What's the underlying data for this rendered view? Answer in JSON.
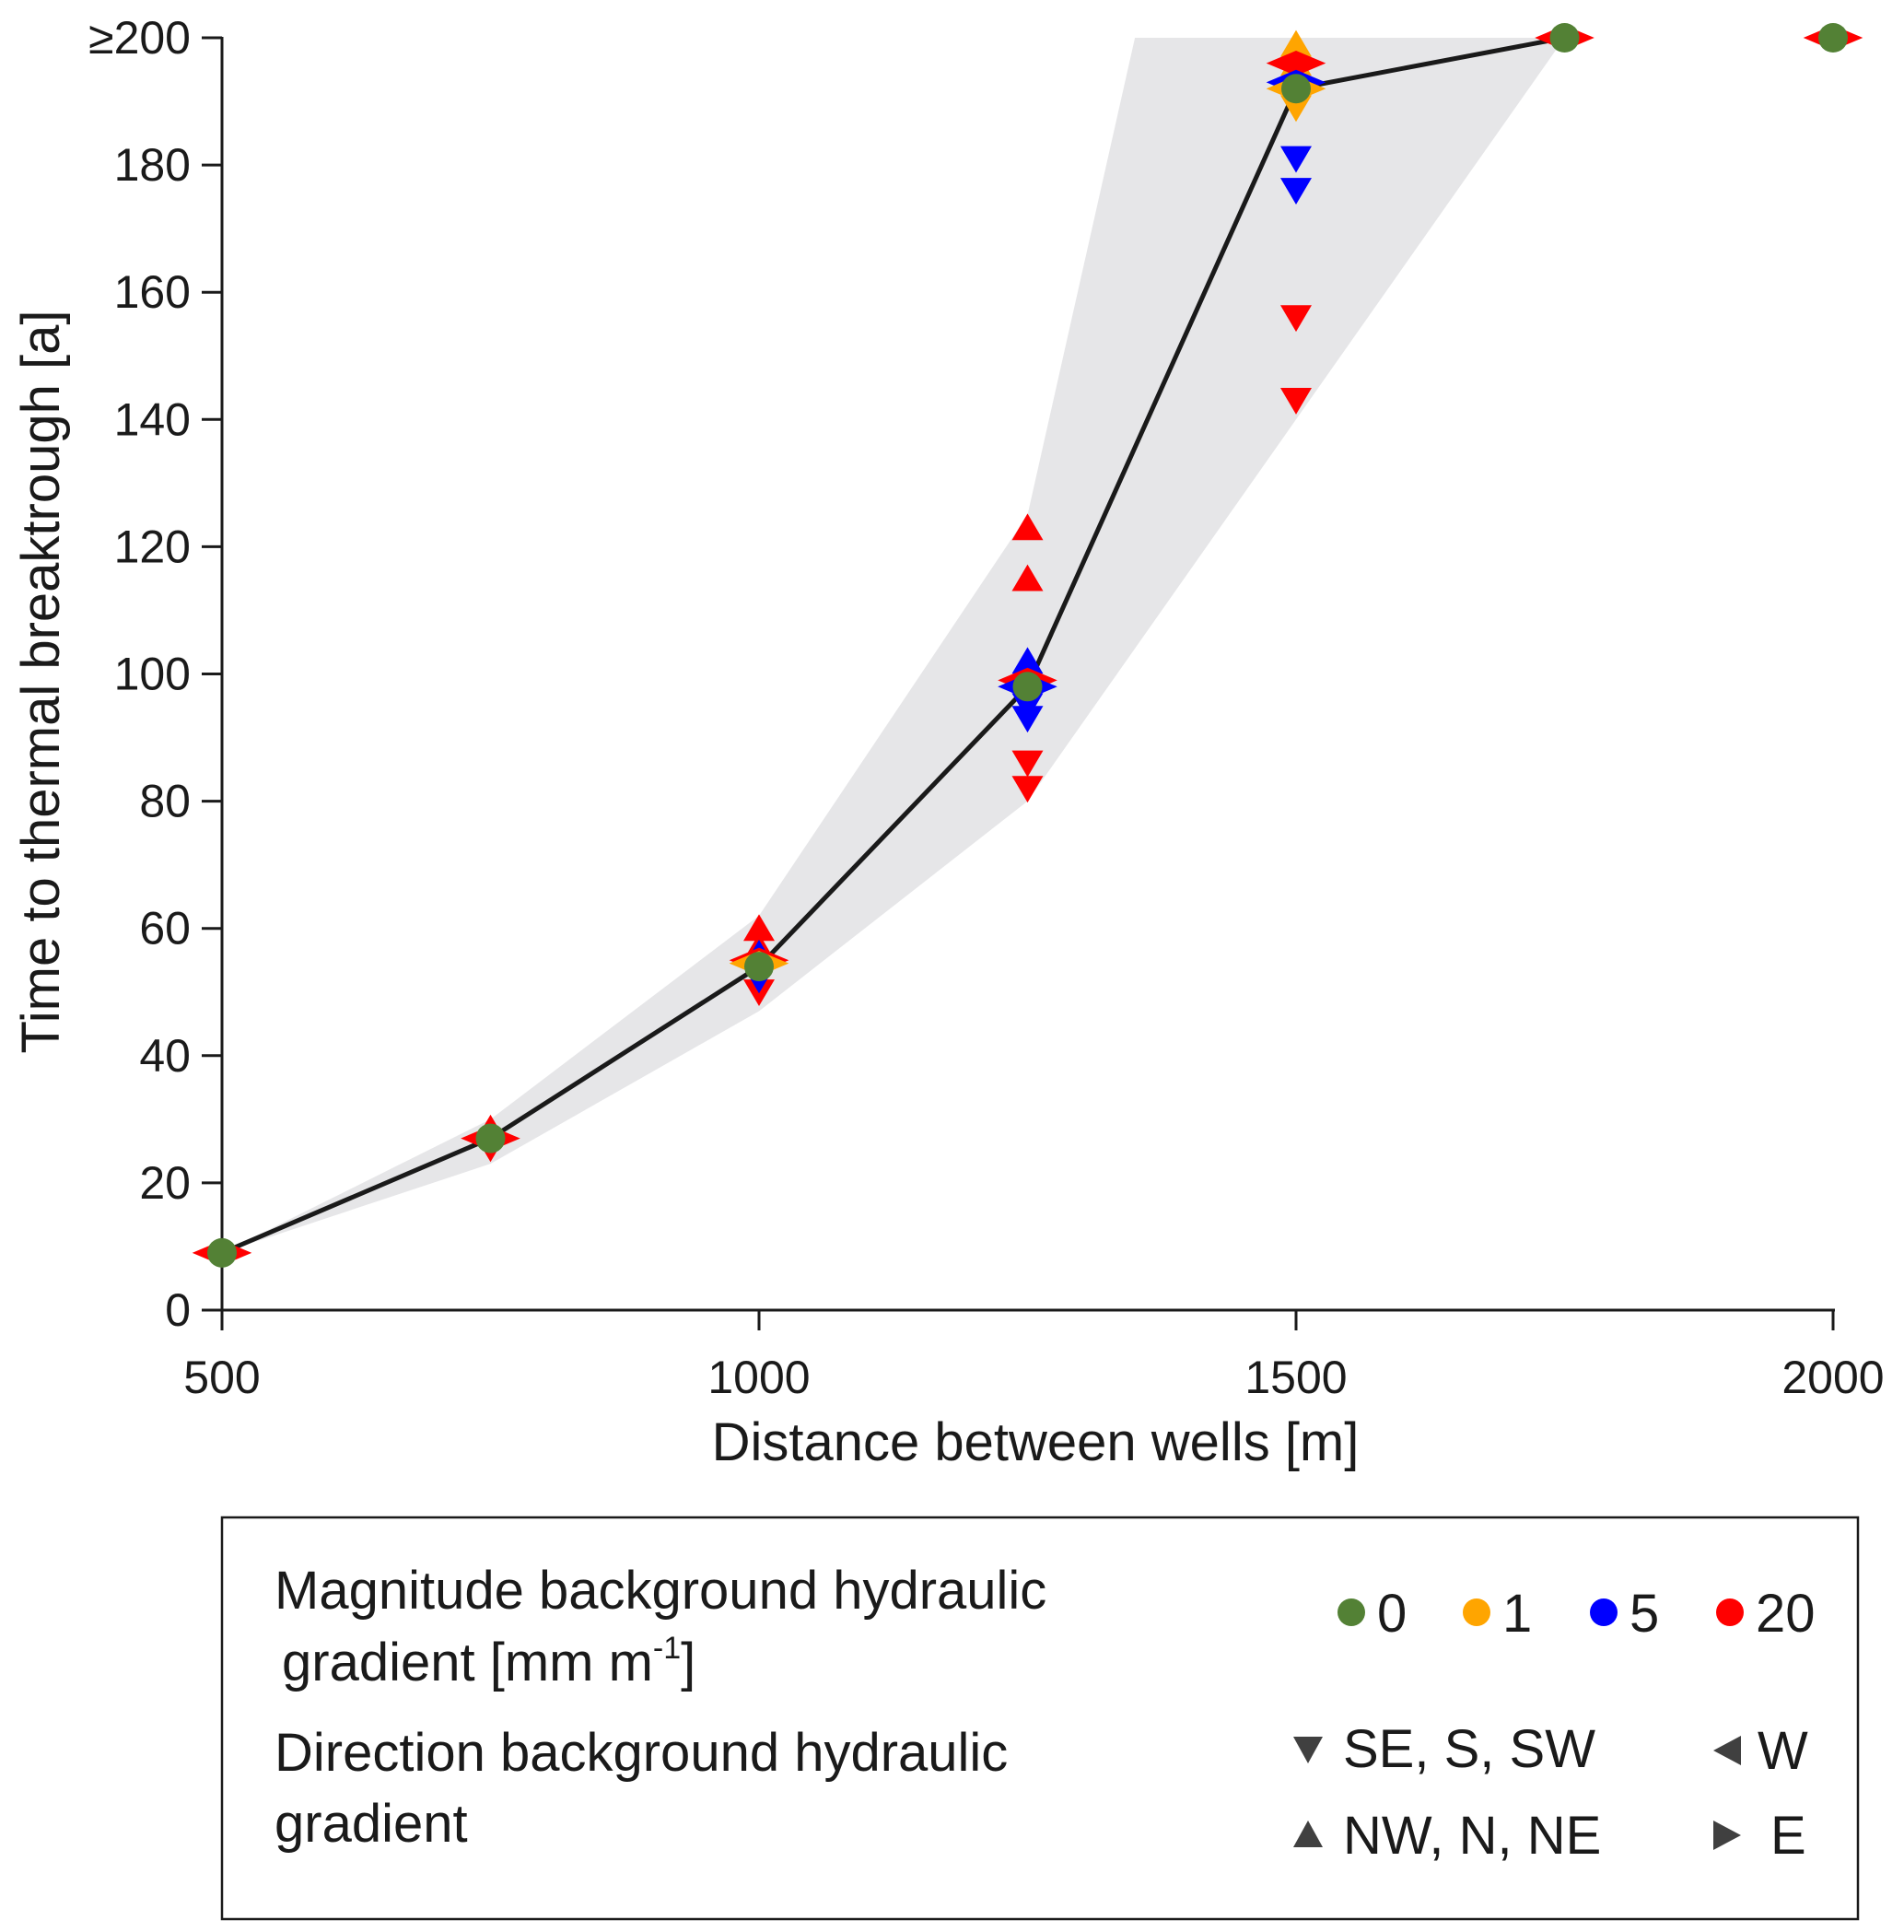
{
  "chart_data": {
    "type": "scatter",
    "xlabel": "Distance between wells [m]",
    "ylabel": "Time to thermal breaktrough [a]",
    "xlim": [
      500,
      2000
    ],
    "ylim": [
      0,
      200
    ],
    "xticks": [
      "500",
      "1000",
      "1500",
      "2000"
    ],
    "yticks": [
      "0",
      "20",
      "40",
      "60",
      "80",
      "100",
      "120",
      "140",
      "160",
      "180",
      "≥200"
    ],
    "grid": false,
    "mean_line": {
      "x": [
        500,
        750,
        1000,
        1250,
        1500,
        1750
      ],
      "y": [
        9,
        27,
        54,
        98,
        192,
        200
      ]
    },
    "range_band": {
      "x": [
        500,
        750,
        1000,
        1250,
        1350,
        1750,
        1500,
        1250,
        1000,
        750,
        500
      ],
      "y": [
        9,
        30,
        62,
        125,
        200,
        200,
        140,
        80,
        47,
        23,
        9
      ]
    },
    "markers": [
      {
        "x": 500,
        "y": 9,
        "magnitude": "20",
        "direction": "W"
      },
      {
        "x": 500,
        "y": 9,
        "magnitude": "20",
        "direction": "E"
      },
      {
        "x": 500,
        "y": 9,
        "magnitude": "0",
        "direction": "none"
      },
      {
        "x": 750,
        "y": 27,
        "magnitude": "20",
        "direction": "NW, N, NE",
        "offset": 1.5
      },
      {
        "x": 750,
        "y": 27,
        "magnitude": "20",
        "direction": "SE, S, SW",
        "offset": -1.5
      },
      {
        "x": 750,
        "y": 27,
        "magnitude": "20",
        "direction": "W"
      },
      {
        "x": 750,
        "y": 27,
        "magnitude": "20",
        "direction": "E"
      },
      {
        "x": 750,
        "y": 27,
        "magnitude": "0",
        "direction": "none"
      },
      {
        "x": 1000,
        "y": 60,
        "magnitude": "20",
        "direction": "NW, N, NE"
      },
      {
        "x": 1000,
        "y": 57,
        "magnitude": "20",
        "direction": "NW, N, NE"
      },
      {
        "x": 1000,
        "y": 56,
        "magnitude": "5",
        "direction": "NW, N, NE"
      },
      {
        "x": 1000,
        "y": 50,
        "magnitude": "20",
        "direction": "SE, S, SW"
      },
      {
        "x": 1000,
        "y": 52,
        "magnitude": "5",
        "direction": "SE, S, SW"
      },
      {
        "x": 1000,
        "y": 55,
        "magnitude": "20",
        "direction": "W"
      },
      {
        "x": 1000,
        "y": 55,
        "magnitude": "20",
        "direction": "E"
      },
      {
        "x": 1000,
        "y": 54.5,
        "magnitude": "1",
        "direction": "W"
      },
      {
        "x": 1000,
        "y": 54.5,
        "magnitude": "1",
        "direction": "E"
      },
      {
        "x": 1000,
        "y": 54,
        "magnitude": "0",
        "direction": "none"
      },
      {
        "x": 1250,
        "y": 123,
        "magnitude": "20",
        "direction": "NW, N, NE"
      },
      {
        "x": 1250,
        "y": 115,
        "magnitude": "20",
        "direction": "NW, N, NE"
      },
      {
        "x": 1250,
        "y": 102,
        "magnitude": "5",
        "direction": "NW, N, NE"
      },
      {
        "x": 1250,
        "y": 99,
        "magnitude": "5",
        "direction": "NW, N, NE"
      },
      {
        "x": 1250,
        "y": 95,
        "magnitude": "5",
        "direction": "SE, S, SW"
      },
      {
        "x": 1250,
        "y": 93,
        "magnitude": "5",
        "direction": "SE, S, SW"
      },
      {
        "x": 1250,
        "y": 86,
        "magnitude": "20",
        "direction": "SE, S, SW"
      },
      {
        "x": 1250,
        "y": 82,
        "magnitude": "20",
        "direction": "SE, S, SW"
      },
      {
        "x": 1250,
        "y": 99,
        "magnitude": "20",
        "direction": "W"
      },
      {
        "x": 1250,
        "y": 99,
        "magnitude": "20",
        "direction": "E"
      },
      {
        "x": 1250,
        "y": 98,
        "magnitude": "5",
        "direction": "W"
      },
      {
        "x": 1250,
        "y": 98,
        "magnitude": "5",
        "direction": "E"
      },
      {
        "x": 1250,
        "y": 98,
        "magnitude": "0",
        "direction": "none"
      },
      {
        "x": 1500,
        "y": 199,
        "magnitude": "1",
        "direction": "NW, N, NE"
      },
      {
        "x": 1500,
        "y": 196,
        "magnitude": "1",
        "direction": "NW, N, NE"
      },
      {
        "x": 1500,
        "y": 189,
        "magnitude": "1",
        "direction": "SE, S, SW"
      },
      {
        "x": 1500,
        "y": 181,
        "magnitude": "5",
        "direction": "SE, S, SW"
      },
      {
        "x": 1500,
        "y": 176,
        "magnitude": "5",
        "direction": "SE, S, SW"
      },
      {
        "x": 1500,
        "y": 156,
        "magnitude": "20",
        "direction": "SE, S, SW"
      },
      {
        "x": 1500,
        "y": 143,
        "magnitude": "20",
        "direction": "SE, S, SW"
      },
      {
        "x": 1500,
        "y": 196,
        "magnitude": "20",
        "direction": "W"
      },
      {
        "x": 1500,
        "y": 196,
        "magnitude": "20",
        "direction": "E"
      },
      {
        "x": 1500,
        "y": 193,
        "magnitude": "5",
        "direction": "W"
      },
      {
        "x": 1500,
        "y": 193,
        "magnitude": "5",
        "direction": "E"
      },
      {
        "x": 1500,
        "y": 192,
        "magnitude": "1",
        "direction": "W"
      },
      {
        "x": 1500,
        "y": 192,
        "magnitude": "1",
        "direction": "E"
      },
      {
        "x": 1500,
        "y": 192,
        "magnitude": "0",
        "direction": "none"
      },
      {
        "x": 1750,
        "y": 200,
        "magnitude": "20",
        "direction": "W"
      },
      {
        "x": 1750,
        "y": 200,
        "magnitude": "20",
        "direction": "E"
      },
      {
        "x": 1750,
        "y": 200,
        "magnitude": "0",
        "direction": "none"
      },
      {
        "x": 2000,
        "y": 200,
        "magnitude": "20",
        "direction": "W"
      },
      {
        "x": 2000,
        "y": 200,
        "magnitude": "20",
        "direction": "E"
      },
      {
        "x": 2000,
        "y": 200,
        "magnitude": "0",
        "direction": "none"
      }
    ],
    "colors": {
      "0": "#538135",
      "1": "#ffa500",
      "5": "#0000ff",
      "20": "#ff0000",
      "band": "#e6e6e8",
      "line": "#1a1a1a",
      "legend_shape": "#404040"
    },
    "legend": {
      "magnitude_title_line1": "Magnitude background hydraulic",
      "magnitude_title_line2": "gradient [mm m",
      "magnitude_title_sup": "-1",
      "magnitude_title_end": "]",
      "magnitude_values": [
        "0",
        "1",
        "5",
        "20"
      ],
      "direction_title_line1": "Direction background hydraulic",
      "direction_title_line2": "gradient",
      "direction_south": "SE, S, SW",
      "direction_north": "NW, N, NE",
      "direction_west": "W",
      "direction_east": "E"
    }
  }
}
